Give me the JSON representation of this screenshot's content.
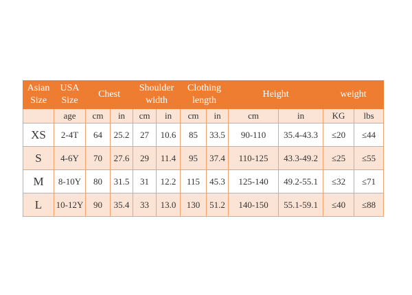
{
  "table": {
    "header": [
      "Asian Size",
      "USA Size",
      "Chest",
      "Shoulder width",
      "Clothing length",
      "Height",
      "weight"
    ],
    "subheader": [
      "age",
      "cm",
      "in",
      "cm",
      "in",
      "cm",
      "in",
      "cm",
      "in",
      "KG",
      "lbs"
    ],
    "rows": [
      [
        "XS",
        "2-4T",
        "64",
        "25.2",
        "27",
        "10.6",
        "85",
        "33.5",
        "90-110",
        "35.4-43.3",
        "≤20",
        "≤44"
      ],
      [
        "S",
        "4-6Y",
        "70",
        "27.6",
        "29",
        "11.4",
        "95",
        "37.4",
        "110-125",
        "43.3-49.2",
        "≤25",
        "≤55"
      ],
      [
        "M",
        "8-10Y",
        "80",
        "31.5",
        "31",
        "12.2",
        "115",
        "45.3",
        "125-140",
        "49.2-55.1",
        "≤32",
        "≤71"
      ],
      [
        "L",
        "10-12Y",
        "90",
        "35.4",
        "33",
        "13.0",
        "130",
        "51.2",
        "140-150",
        "55.1-59.1",
        "≤40",
        "≤88"
      ]
    ]
  }
}
